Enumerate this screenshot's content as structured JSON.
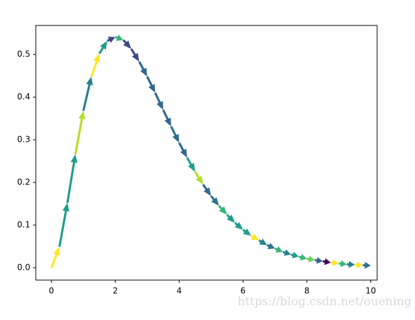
{
  "chart_data": {
    "type": "quiver",
    "x": [
      0,
      0.25,
      0.5,
      0.75,
      1,
      1.25,
      1.5,
      1.75,
      2,
      2.25,
      2.5,
      2.75,
      3,
      3.25,
      3.5,
      3.75,
      4,
      4.25,
      4.5,
      4.75,
      5,
      5.25,
      5.5,
      5.75,
      6,
      6.25,
      6.5,
      6.75,
      7,
      7.25,
      7.5,
      7.75,
      8,
      8.25,
      8.5,
      8.75,
      9,
      9.25,
      9.5,
      9.75,
      10
    ],
    "y": [
      0,
      0.049,
      0.152,
      0.266,
      0.368,
      0.448,
      0.502,
      0.532,
      0.541,
      0.534,
      0.513,
      0.483,
      0.448,
      0.41,
      0.37,
      0.331,
      0.293,
      0.258,
      0.225,
      0.195,
      0.168,
      0.145,
      0.124,
      0.105,
      0.089,
      0.075,
      0.064,
      0.053,
      0.045,
      0.037,
      0.031,
      0.026,
      0.021,
      0.018,
      0.015,
      0.012,
      0.01,
      0.008,
      0.007,
      0.006,
      0.005
    ],
    "colors": [
      "#fde725",
      "#1f9e89",
      "#1f9e89",
      "#b5de2b",
      "#26828e",
      "#fde725",
      "#1f9e89",
      "#3e4989",
      "#35b779",
      "#3e4989",
      "#3e4989",
      "#31688e",
      "#31688e",
      "#31688e",
      "#31688e",
      "#2c728e",
      "#31688e",
      "#1f9e89",
      "#b5de2b",
      "#31688e",
      "#2c728e",
      "#35b779",
      "#1f9e89",
      "#1f9e89",
      "#1f9e89",
      "#fde725",
      "#26828e",
      "#2c728e",
      "#35b779",
      "#26828e",
      "#1f9e89",
      "#35b779",
      "#6ece58",
      "#31688e",
      "#440154",
      "#fde725",
      "#35b779",
      "#26828e",
      "#fde725",
      "#2c728e"
    ],
    "xlim": [
      -0.49,
      10.2
    ],
    "ylim": [
      -0.029,
      0.568
    ],
    "xticks": [
      0,
      2,
      4,
      6,
      8,
      10
    ],
    "yticks": [
      {
        "value": 0,
        "label": "0.0"
      },
      0.1,
      0.2,
      0.3,
      0.4,
      0.5
    ],
    "watermark": "https://blog.csdn.net/ouening"
  }
}
